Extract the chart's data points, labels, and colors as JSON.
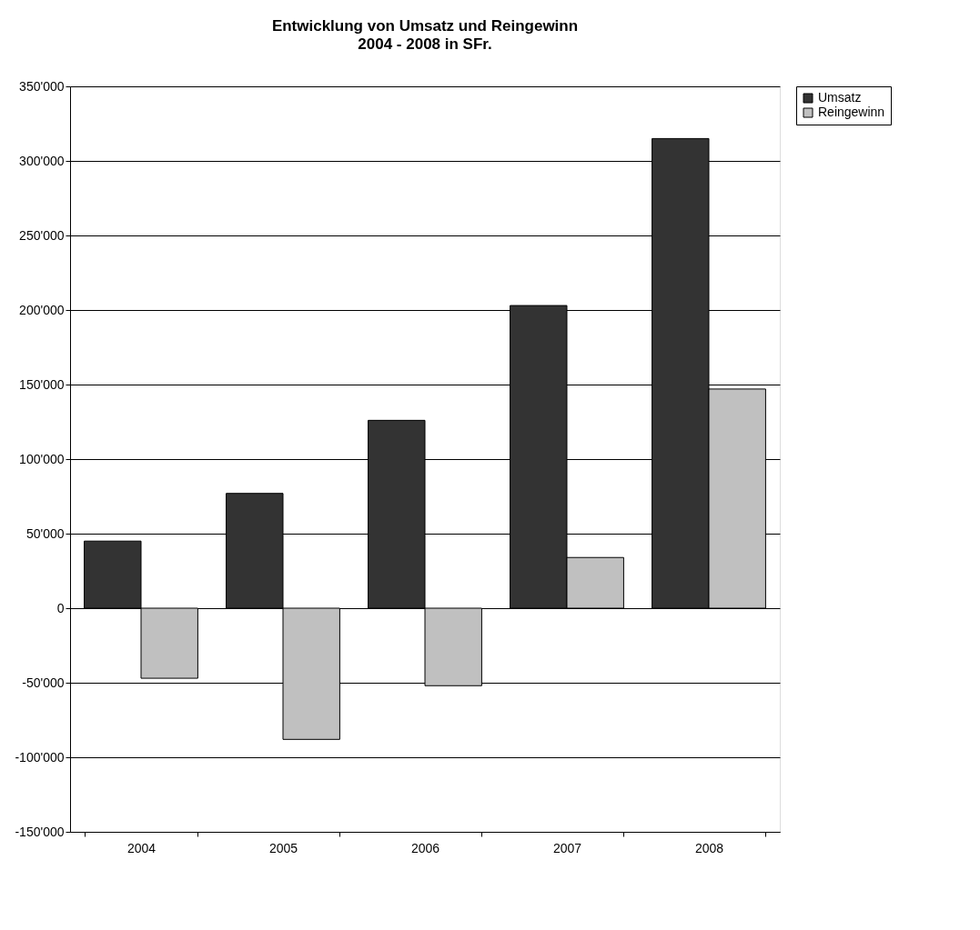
{
  "chart_data": {
    "type": "bar",
    "title": "Entwicklung von Umsatz und Reingewinn",
    "subtitle": "2004 - 2008 in SFr.",
    "categories": [
      "2004",
      "2005",
      "2006",
      "2007",
      "2008"
    ],
    "series": [
      {
        "name": "Umsatz",
        "color": "#333333",
        "values": [
          45000,
          77000,
          126000,
          203000,
          315000
        ]
      },
      {
        "name": "Reingewinn",
        "color": "#c0c0c0",
        "values": [
          -47000,
          -88000,
          -52000,
          34000,
          147000
        ]
      }
    ],
    "ylim": [
      -150000,
      350000
    ],
    "yticks": [
      {
        "value": -150000,
        "label": "-150'000"
      },
      {
        "value": -100000,
        "label": "-100'000"
      },
      {
        "value": -50000,
        "label": "-50'000"
      },
      0,
      {
        "value": 50000,
        "label": "50'000"
      },
      {
        "value": 100000,
        "label": "100'000"
      },
      {
        "value": 150000,
        "label": "150'000"
      },
      {
        "value": 200000,
        "label": "200'000"
      },
      {
        "value": 250000,
        "label": "250'000"
      },
      {
        "value": 300000,
        "label": "300'000"
      },
      {
        "value": 350000,
        "label": "350'000"
      }
    ],
    "grid": "y",
    "legend": "right"
  }
}
